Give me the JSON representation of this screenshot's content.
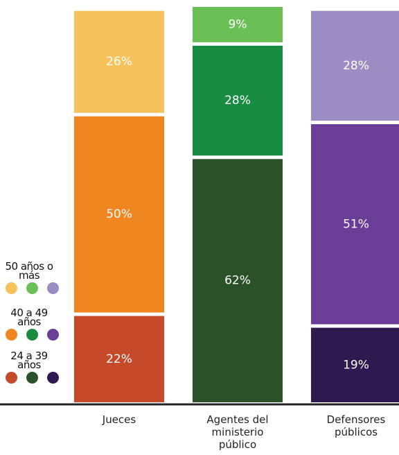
{
  "chart_data": {
    "type": "stacked-bar",
    "categories": [
      "Jueces",
      "Agentes del ministerio público",
      "Defensores públicos"
    ],
    "series": [
      {
        "name": "24 a 39 años",
        "colors": [
          "#c44a2a",
          "#2b5129",
          "#2e1a50"
        ],
        "values": [
          22,
          62,
          19
        ],
        "value_labels": [
          "22%",
          "62%",
          "19%"
        ]
      },
      {
        "name": "40 a 49 años",
        "colors": [
          "#f0861f",
          "#1a8c42",
          "#6a3e96"
        ],
        "values": [
          50,
          28,
          51
        ],
        "value_labels": [
          "50%",
          "28%",
          "51%"
        ]
      },
      {
        "name": "50 años o más",
        "colors": [
          "#f7c25a",
          "#6abf55",
          "#9b8cc4"
        ],
        "values": [
          26,
          9,
          28
        ],
        "value_labels": [
          "26%",
          "9%",
          "28%"
        ]
      }
    ]
  }
}
